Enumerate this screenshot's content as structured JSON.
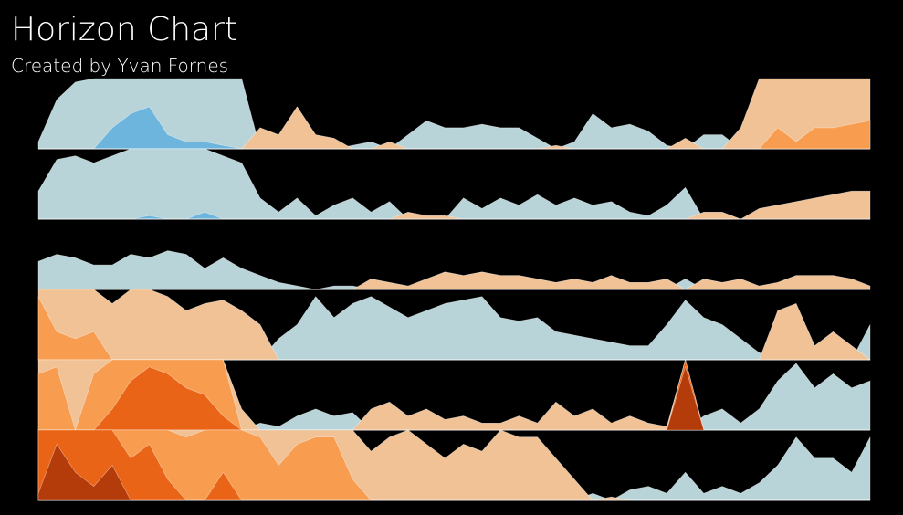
{
  "chart_data": {
    "type": "horizon",
    "title": "Horizon Chart",
    "subtitle": "Created by Yvan Fornes",
    "positive_colors": [
      "#b9d4d9",
      "#6db5dc",
      "#3a8fc7",
      "#1f6ea8"
    ],
    "negative_colors": [
      "#f0c296",
      "#f89c50",
      "#ea6417",
      "#b33c0a"
    ],
    "series": [
      {
        "values": [
          0.1,
          0.7,
          0.95,
          1.0,
          1.3,
          1.5,
          1.6,
          1.2,
          1.1,
          1.1,
          1.05,
          1.0,
          -0.3,
          -0.2,
          -0.6,
          -0.2,
          -0.15,
          0.05,
          0.1,
          -0.1,
          0.2,
          0.4,
          0.3,
          0.3,
          0.35,
          0.3,
          0.3,
          0.15,
          -0.05,
          0.1,
          0.5,
          0.3,
          0.35,
          0.25,
          0.05,
          -0.15,
          0.2,
          0.2,
          -0.3,
          -1.0,
          -1.3,
          -1.1,
          -1.3,
          -1.3,
          -1.35,
          -1.4
        ]
      },
      {
        "values": [
          0.4,
          0.85,
          0.9,
          0.8,
          0.9,
          1.0,
          1.05,
          1.0,
          1.0,
          1.1,
          0.9,
          0.8,
          0.3,
          0.1,
          0.3,
          0.05,
          0.2,
          0.3,
          0.1,
          0.25,
          -0.1,
          -0.05,
          -0.05,
          0.3,
          0.15,
          0.3,
          0.2,
          0.35,
          0.2,
          0.3,
          0.2,
          0.25,
          0.1,
          0.05,
          0.2,
          0.45,
          -0.1,
          -0.1,
          0.0,
          -0.15,
          -0.2,
          -0.25,
          -0.3,
          -0.35,
          -0.4,
          -0.4
        ]
      },
      {
        "values": [
          0.4,
          0.5,
          0.45,
          0.35,
          0.35,
          0.5,
          0.45,
          0.55,
          0.5,
          0.3,
          0.45,
          0.3,
          0.2,
          0.1,
          0.05,
          0.0,
          0.05,
          0.05,
          -0.15,
          -0.1,
          -0.05,
          -0.15,
          -0.25,
          -0.2,
          -0.25,
          -0.2,
          -0.2,
          -0.15,
          -0.1,
          -0.15,
          -0.1,
          -0.2,
          -0.1,
          -0.1,
          -0.15,
          0.15,
          -0.15,
          -0.1,
          -0.15,
          -0.05,
          -0.1,
          -0.2,
          -0.2,
          -0.2,
          -0.15,
          -0.05
        ]
      },
      {
        "values": [
          -1.9,
          -1.4,
          -1.3,
          -1.4,
          -0.8,
          -1.0,
          -1.0,
          -0.9,
          -0.7,
          -0.8,
          -0.85,
          -0.7,
          -0.5,
          0.3,
          0.5,
          0.9,
          0.6,
          0.8,
          0.9,
          0.75,
          0.6,
          0.7,
          0.8,
          0.85,
          0.9,
          0.6,
          0.55,
          0.6,
          0.4,
          0.35,
          0.3,
          0.25,
          0.2,
          0.2,
          0.5,
          0.85,
          0.6,
          0.5,
          0.3,
          0.1,
          -0.7,
          -0.8,
          -0.2,
          -0.4,
          -0.2,
          0.5
        ]
      },
      {
        "values": [
          -1.8,
          -1.9,
          -1.0,
          -1.8,
          -2.3,
          -2.7,
          -2.9,
          -2.8,
          -2.6,
          -2.5,
          -2.2,
          -0.3,
          0.1,
          0.05,
          0.2,
          0.3,
          0.2,
          0.25,
          -0.3,
          -0.4,
          -0.2,
          -0.3,
          -0.15,
          -0.2,
          -0.1,
          -0.1,
          -0.2,
          -0.1,
          -0.4,
          -0.2,
          -0.3,
          -0.1,
          -0.2,
          -0.1,
          -0.05,
          -3.9,
          0.2,
          0.3,
          0.1,
          0.3,
          0.7,
          0.95,
          0.6,
          0.8,
          0.6,
          0.7
        ]
      },
      {
        "values": [
          -3.1,
          -3.8,
          -3.4,
          -3.2,
          -3.5,
          -2.6,
          -2.8,
          -2.3,
          -1.9,
          -2.0,
          -2.4,
          -2.0,
          -1.9,
          -1.5,
          -1.8,
          -1.9,
          -1.9,
          -1.3,
          -0.7,
          -0.9,
          -1.0,
          -0.8,
          -0.6,
          -0.8,
          -0.7,
          -1.0,
          -0.9,
          -0.9,
          -0.6,
          -0.3,
          0.1,
          -0.05,
          0.15,
          0.2,
          0.1,
          0.4,
          0.1,
          0.2,
          0.1,
          0.25,
          0.5,
          0.9,
          0.6,
          0.6,
          0.4,
          0.9
        ]
      }
    ]
  }
}
